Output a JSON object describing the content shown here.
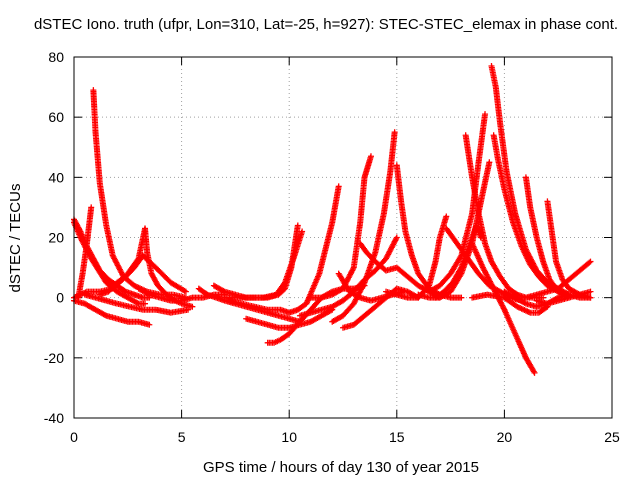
{
  "chart_data": {
    "type": "scatter",
    "title": "dSTEC Iono. truth (ufpr, Lon=310, Lat=-25, h=927): STEC-STEC_elemax in phase cont.",
    "xlabel": "GPS time / hours of day 130 of year 2015",
    "ylabel": "dSTEC  / TECUs",
    "xlim": [
      0,
      25
    ],
    "ylim": [
      -40,
      80
    ],
    "xticks": [
      "0",
      "5",
      "10",
      "15",
      "20",
      "25"
    ],
    "yticks": [
      "-40",
      "-20",
      "0",
      "20",
      "40",
      "60",
      "80"
    ],
    "grid": true,
    "marker": "+",
    "color": "#ff0000",
    "series": [
      {
        "x": [
          0.0,
          0.3,
          0.6,
          0.9,
          1.2,
          1.6,
          2.0,
          2.4,
          2.8,
          3.2,
          3.5
        ],
        "y": [
          26,
          22,
          17,
          13,
          9,
          6,
          4,
          2,
          1,
          0,
          0
        ]
      },
      {
        "x": [
          0.2,
          0.4,
          0.6,
          0.8
        ],
        "y": [
          0,
          8,
          18,
          30
        ]
      },
      {
        "x": [
          0.9,
          1.0,
          1.2,
          1.5,
          1.8,
          2.3,
          2.8,
          3.4,
          4.0,
          4.6,
          5.2
        ],
        "y": [
          69,
          55,
          38,
          24,
          14,
          7,
          4,
          2,
          1,
          1,
          0
        ]
      },
      {
        "x": [
          0.0,
          0.3,
          0.8,
          1.5,
          2.0,
          2.5,
          3.0,
          3.3
        ],
        "y": [
          25,
          20,
          13,
          5,
          2,
          0,
          -2,
          -2
        ]
      },
      {
        "x": [
          0.0,
          0.5,
          1.0,
          1.5,
          2.0,
          2.5,
          3.0,
          3.5
        ],
        "y": [
          -1,
          -2,
          -4,
          -6,
          -7,
          -8,
          -8,
          -9
        ]
      },
      {
        "x": [
          0.0,
          0.6,
          1.2,
          1.8,
          2.4,
          3.0,
          3.3
        ],
        "y": [
          0,
          2,
          2,
          3,
          7,
          13,
          23
        ]
      },
      {
        "x": [
          3.3,
          3.4,
          3.6,
          3.9,
          4.3,
          4.7,
          5.0,
          5.5
        ],
        "y": [
          23,
          15,
          8,
          4,
          1,
          -1,
          -2,
          -3
        ]
      },
      {
        "x": [
          1.2,
          1.6,
          2.0,
          2.4,
          2.8,
          3.2,
          3.8,
          4.5,
          5.2
        ],
        "y": [
          1,
          2,
          5,
          7,
          10,
          14,
          10,
          5,
          2
        ]
      },
      {
        "x": [
          0.5,
          1.0,
          1.5,
          2.0,
          2.6,
          3.2,
          3.8,
          4.5,
          5.3
        ],
        "y": [
          1,
          0,
          -1,
          -2,
          -3,
          -4,
          -4,
          -5,
          -4
        ]
      },
      {
        "x": [
          3.0,
          3.5,
          4.0,
          4.5,
          5.0,
          5.5,
          6.0,
          6.5,
          7.0
        ],
        "y": [
          3,
          1,
          0,
          -1,
          -1,
          0,
          0,
          1,
          1
        ]
      },
      {
        "x": [
          5.8,
          6.2,
          6.6,
          7.0,
          7.5,
          8.0,
          8.5,
          9.0,
          9.5,
          10.0,
          10.5
        ],
        "y": [
          3,
          1,
          0,
          -1,
          -2,
          -3,
          -4,
          -5,
          -6,
          -7,
          -8
        ]
      },
      {
        "x": [
          6.5,
          7.0,
          7.5,
          8.0,
          8.5,
          9.0,
          9.5,
          9.8,
          10.1,
          10.4
        ],
        "y": [
          4,
          2,
          1,
          0,
          0,
          0,
          1,
          3,
          10,
          24
        ]
      },
      {
        "x": [
          7.0,
          7.6,
          8.2,
          8.8,
          9.4,
          9.8,
          10.2,
          10.6
        ],
        "y": [
          0,
          0,
          0,
          0,
          1,
          5,
          13,
          22
        ]
      },
      {
        "x": [
          7.2,
          7.8,
          8.4,
          9.0,
          9.6,
          10.0,
          10.4,
          10.8,
          11.4,
          12.0,
          12.3
        ],
        "y": [
          -1,
          -2,
          -3,
          -4,
          -4,
          -5,
          -4,
          -2,
          8,
          25,
          37
        ]
      },
      {
        "x": [
          8.0,
          8.5,
          9.0,
          9.5,
          10.0,
          10.5,
          11.0,
          11.5,
          12.0
        ],
        "y": [
          -7,
          -8,
          -9,
          -10,
          -10,
          -9,
          -8,
          -6,
          -4
        ]
      },
      {
        "x": [
          9.0,
          9.3,
          9.6,
          10.0,
          10.5,
          11.0,
          11.5,
          12.0,
          12.5,
          13.0,
          13.5
        ],
        "y": [
          -15,
          -15,
          -14,
          -12,
          -8,
          -4,
          0,
          2,
          3,
          3,
          4
        ]
      },
      {
        "x": [
          10.5,
          11.0,
          11.5,
          12.0,
          12.5,
          13.0,
          13.5,
          14.0,
          14.5,
          15.0
        ],
        "y": [
          -6,
          -5,
          -4,
          -3,
          -1,
          2,
          6,
          9,
          13,
          20
        ]
      },
      {
        "x": [
          11.0,
          11.5,
          12.0,
          12.5,
          13.0,
          13.3,
          13.5,
          13.8
        ],
        "y": [
          0,
          0,
          1,
          3,
          10,
          25,
          40,
          47
        ]
      },
      {
        "x": [
          12.0,
          12.5,
          13.0,
          13.5,
          14.0,
          14.4,
          14.7,
          14.9
        ],
        "y": [
          -8,
          -6,
          -2,
          5,
          15,
          28,
          42,
          55
        ]
      },
      {
        "x": [
          12.3,
          12.8,
          13.3,
          13.8,
          14.3,
          14.8,
          15.3
        ],
        "y": [
          8,
          2,
          0,
          -1,
          0,
          1,
          2
        ]
      },
      {
        "x": [
          12.5,
          13.0,
          13.5,
          14.0,
          14.5,
          15.0,
          15.5,
          16.0
        ],
        "y": [
          -10,
          -9,
          -6,
          -3,
          0,
          3,
          2,
          0
        ]
      },
      {
        "x": [
          13.3,
          13.6,
          14.0,
          14.5,
          15.0,
          15.5,
          16.0,
          16.5,
          17.0
        ],
        "y": [
          18,
          15,
          12,
          9,
          10,
          7,
          4,
          2,
          0
        ]
      },
      {
        "x": [
          15.0,
          15.2,
          15.4,
          15.7,
          16.0,
          16.5,
          17.0,
          17.5,
          18.0
        ],
        "y": [
          44,
          32,
          22,
          14,
          8,
          3,
          1,
          0,
          0
        ]
      },
      {
        "x": [
          14.5,
          15.0,
          15.5,
          16.0,
          16.5,
          16.8,
          17.0,
          17.3
        ],
        "y": [
          2,
          1,
          0,
          0,
          4,
          12,
          20,
          27
        ]
      },
      {
        "x": [
          17.3,
          17.8,
          18.3,
          18.8,
          19.3,
          19.8,
          20.3,
          20.8
        ],
        "y": [
          23,
          18,
          13,
          8,
          4,
          2,
          0,
          -1
        ]
      },
      {
        "x": [
          16.0,
          16.5,
          17.0,
          17.5,
          18.0,
          18.5,
          19.0,
          19.3
        ],
        "y": [
          1,
          0,
          0,
          2,
          8,
          18,
          35,
          45
        ]
      },
      {
        "x": [
          16.5,
          17.0,
          17.5,
          18.0,
          18.5,
          18.8,
          19.1
        ],
        "y": [
          2,
          4,
          8,
          14,
          28,
          45,
          61
        ]
      },
      {
        "x": [
          16.8,
          17.2,
          17.6,
          18.0,
          18.4,
          18.7,
          18.9
        ],
        "y": [
          0,
          2,
          5,
          10,
          18,
          24,
          20
        ]
      },
      {
        "x": [
          18.2,
          18.5,
          18.8,
          19.1,
          19.4,
          19.8,
          20.2,
          20.6,
          21.0,
          21.4,
          21.8
        ],
        "y": [
          54,
          40,
          28,
          18,
          12,
          7,
          3,
          1,
          0,
          0,
          0
        ]
      },
      {
        "x": [
          19.4,
          19.6,
          19.8,
          20.1,
          20.5,
          21.0,
          21.5,
          22.0,
          22.5,
          23.0,
          23.5,
          24.0
        ],
        "y": [
          77,
          70,
          58,
          42,
          28,
          16,
          9,
          5,
          3,
          1,
          0,
          0
        ]
      },
      {
        "x": [
          19.5,
          19.7,
          20.0,
          20.4,
          20.8,
          21.2,
          21.6,
          22.0,
          22.5,
          23.0
        ],
        "y": [
          54,
          46,
          36,
          25,
          17,
          11,
          7,
          4,
          2,
          1
        ]
      },
      {
        "x": [
          18.5,
          19.0,
          19.5,
          20.0,
          20.5,
          21.0,
          21.4
        ],
        "y": [
          18,
          10,
          3,
          -4,
          -12,
          -20,
          -25
        ]
      },
      {
        "x": [
          18.5,
          19.2,
          20.0,
          20.6,
          21.2,
          21.6,
          22.0
        ],
        "y": [
          0,
          1,
          0,
          -3,
          -5,
          -5,
          -3
        ]
      },
      {
        "x": [
          21.0,
          21.2,
          21.5,
          21.8,
          22.1,
          22.5,
          23.0
        ],
        "y": [
          40,
          30,
          20,
          12,
          6,
          2,
          0
        ]
      },
      {
        "x": [
          21.0,
          21.5,
          22.0,
          22.5,
          23.0,
          23.5,
          24.0
        ],
        "y": [
          0,
          1,
          2,
          3,
          6,
          9,
          12
        ]
      },
      {
        "x": [
          22.0,
          22.2,
          22.4,
          22.7,
          23.0,
          23.5,
          24.0
        ],
        "y": [
          32,
          22,
          12,
          6,
          3,
          1,
          0
        ]
      },
      {
        "x": [
          20.0,
          20.5,
          21.0,
          21.5,
          22.0,
          22.5,
          23.0
        ],
        "y": [
          2,
          0,
          -2,
          -3,
          -2,
          0,
          1
        ]
      },
      {
        "x": [
          21.5,
          22.0,
          22.5,
          23.0,
          23.5,
          24.0
        ],
        "y": [
          -1,
          -2,
          -1,
          0,
          1,
          2
        ]
      }
    ]
  }
}
